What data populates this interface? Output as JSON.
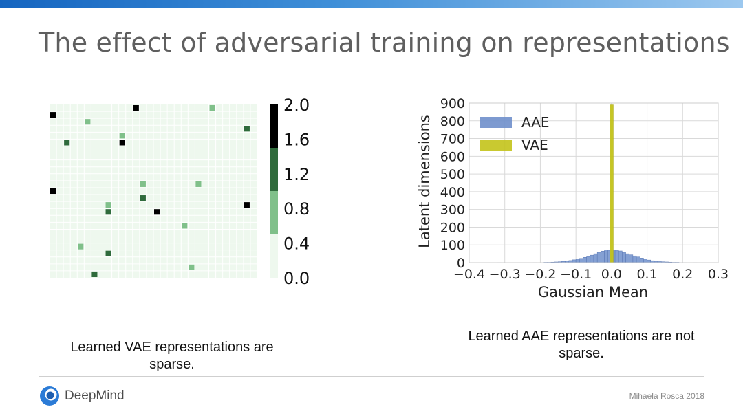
{
  "slide": {
    "title": "The effect of adversarial training on representations",
    "caption_left": "Learned VAE representations are sparse.",
    "caption_right": "Learned AAE representations are not sparse.",
    "brand": "DeepMind",
    "author": "Mihaela Rosca 2018"
  },
  "chart_data": [
    {
      "type": "heatmap",
      "grid": {
        "rows": 25,
        "cols": 30
      },
      "color_scale": {
        "ticks": [
          "0.0",
          "0.4",
          "0.8",
          "1.2",
          "1.6",
          "2.0"
        ],
        "range": [
          0,
          2
        ],
        "bins": [
          {
            "from": 0.0,
            "to": 0.5,
            "color": "#eef8ee"
          },
          {
            "from": 0.5,
            "to": 1.0,
            "color": "#80c08a"
          },
          {
            "from": 1.0,
            "to": 1.5,
            "color": "#2f6b3c"
          },
          {
            "from": 1.5,
            "to": 2.0,
            "color": "#000000"
          }
        ]
      },
      "cells": [
        {
          "row": 1,
          "col": 13,
          "value": 2.0
        },
        {
          "row": 1,
          "col": 24,
          "value": 0.8
        },
        {
          "row": 2,
          "col": 1,
          "value": 2.0
        },
        {
          "row": 3,
          "col": 6,
          "value": 0.8
        },
        {
          "row": 4,
          "col": 29,
          "value": 1.2
        },
        {
          "row": 5,
          "col": 11,
          "value": 0.8
        },
        {
          "row": 6,
          "col": 3,
          "value": 1.2
        },
        {
          "row": 6,
          "col": 11,
          "value": 2.0
        },
        {
          "row": 12,
          "col": 14,
          "value": 0.8
        },
        {
          "row": 12,
          "col": 22,
          "value": 0.8
        },
        {
          "row": 13,
          "col": 1,
          "value": 2.0
        },
        {
          "row": 14,
          "col": 14,
          "value": 1.2
        },
        {
          "row": 15,
          "col": 9,
          "value": 0.8
        },
        {
          "row": 15,
          "col": 29,
          "value": 2.0
        },
        {
          "row": 16,
          "col": 9,
          "value": 1.2
        },
        {
          "row": 16,
          "col": 16,
          "value": 2.0
        },
        {
          "row": 18,
          "col": 20,
          "value": 0.8
        },
        {
          "row": 21,
          "col": 5,
          "value": 0.8
        },
        {
          "row": 22,
          "col": 9,
          "value": 1.2
        },
        {
          "row": 24,
          "col": 21,
          "value": 0.8
        },
        {
          "row": 25,
          "col": 7,
          "value": 1.2
        }
      ]
    },
    {
      "type": "bar",
      "subtype": "histogram",
      "xlabel": "Gaussian Mean",
      "ylabel": "Latent dimensions",
      "xlim": [
        -0.4,
        0.3
      ],
      "ylim": [
        0,
        900
      ],
      "xticks": [
        "−0.4",
        "−0.3",
        "−0.2",
        "−0.1",
        "0.0",
        "0.1",
        "0.2",
        "0.3"
      ],
      "yticks": [
        "0",
        "100",
        "200",
        "300",
        "400",
        "500",
        "600",
        "700",
        "800",
        "900"
      ],
      "grid": true,
      "legend_position": "top-left",
      "series": [
        {
          "name": "AAE",
          "color": "#6f8fcb",
          "bin_width": 0.01,
          "bins": [
            {
              "x": -0.32,
              "count": 1
            },
            {
              "x": -0.22,
              "count": 1
            },
            {
              "x": -0.19,
              "count": 2
            },
            {
              "x": -0.18,
              "count": 2
            },
            {
              "x": -0.17,
              "count": 3
            },
            {
              "x": -0.16,
              "count": 4
            },
            {
              "x": -0.15,
              "count": 5
            },
            {
              "x": -0.14,
              "count": 7
            },
            {
              "x": -0.13,
              "count": 9
            },
            {
              "x": -0.12,
              "count": 12
            },
            {
              "x": -0.11,
              "count": 16
            },
            {
              "x": -0.1,
              "count": 20
            },
            {
              "x": -0.09,
              "count": 24
            },
            {
              "x": -0.08,
              "count": 30
            },
            {
              "x": -0.07,
              "count": 35
            },
            {
              "x": -0.06,
              "count": 42
            },
            {
              "x": -0.05,
              "count": 50
            },
            {
              "x": -0.04,
              "count": 58
            },
            {
              "x": -0.03,
              "count": 65
            },
            {
              "x": -0.02,
              "count": 72
            },
            {
              "x": -0.01,
              "count": 70
            },
            {
              "x": 0.0,
              "count": 68
            },
            {
              "x": 0.01,
              "count": 70
            },
            {
              "x": 0.02,
              "count": 66
            },
            {
              "x": 0.03,
              "count": 58
            },
            {
              "x": 0.04,
              "count": 50
            },
            {
              "x": 0.05,
              "count": 44
            },
            {
              "x": 0.06,
              "count": 38
            },
            {
              "x": 0.07,
              "count": 32
            },
            {
              "x": 0.08,
              "count": 26
            },
            {
              "x": 0.09,
              "count": 20
            },
            {
              "x": 0.1,
              "count": 15
            },
            {
              "x": 0.11,
              "count": 11
            },
            {
              "x": 0.12,
              "count": 8
            },
            {
              "x": 0.13,
              "count": 6
            },
            {
              "x": 0.14,
              "count": 5
            },
            {
              "x": 0.15,
              "count": 4
            },
            {
              "x": 0.16,
              "count": 3
            },
            {
              "x": 0.17,
              "count": 2
            },
            {
              "x": 0.18,
              "count": 2
            },
            {
              "x": 0.19,
              "count": 1
            },
            {
              "x": 0.2,
              "count": 1
            },
            {
              "x": 0.23,
              "count": 1
            }
          ]
        },
        {
          "name": "VAE",
          "color": "#c3c31a",
          "bin_width": 0.01,
          "bins": [
            {
              "x": -0.005,
              "count": 890
            }
          ]
        }
      ]
    }
  ]
}
